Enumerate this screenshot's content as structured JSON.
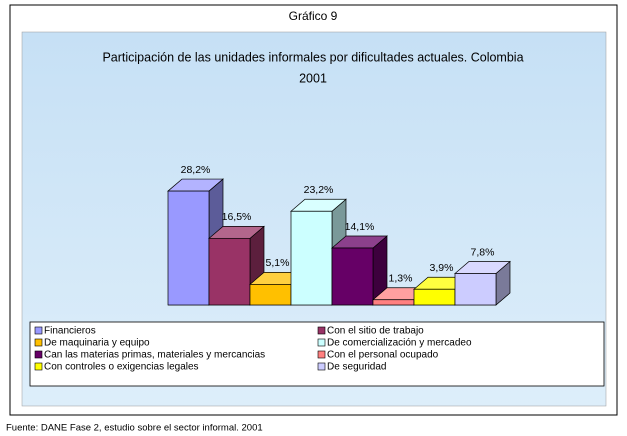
{
  "chart_data": {
    "type": "bar",
    "title": "Gráfico 9",
    "subtitle": [
      "Participación de las unidades informales por dificultades actuales. Colombia",
      "2001"
    ],
    "categories": [
      "Financieros",
      "Con el sitio de trabajo",
      "De maquinaria y equipo",
      "De comercialización y mercadeo",
      "Can las materias primas, materiales y mercancias",
      "Con el personal ocupado",
      "Con controles o exigencias legales",
      "De seguridad"
    ],
    "values": [
      28.2,
      16.5,
      5.1,
      23.2,
      14.1,
      1.3,
      3.9,
      7.8
    ],
    "value_labels": [
      "28,2%",
      "16,5%",
      "5,1%",
      "23,2%",
      "14,1%",
      "1,3%",
      "3,9%",
      "7,8%"
    ],
    "colors": [
      "#9999ff",
      "#993366",
      "#ffc000",
      "#ccffff",
      "#660066",
      "#ff8080",
      "#ffff00",
      "#ccccff"
    ],
    "legend": "bottom",
    "source": "Fuente: DANE Fase 2, estudio sobre el sector informal. 2001"
  }
}
